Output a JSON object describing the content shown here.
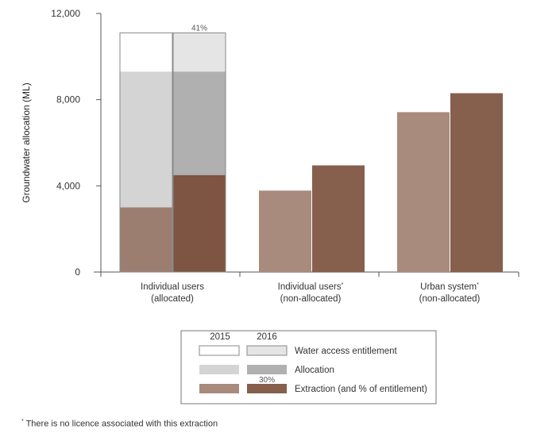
{
  "chart_data": {
    "type": "bar",
    "ylabel": "Groundwater allocation (ML)",
    "ylim": [
      0,
      12000
    ],
    "yticks": [
      "0",
      "4,000",
      "8,000",
      "12,000"
    ],
    "ytick_values": [
      0,
      4000,
      8000,
      12000
    ],
    "grid": false,
    "categories": [
      {
        "line1": "Individual users",
        "line2": "(allocated)",
        "star": ""
      },
      {
        "line1": "Individual users",
        "line2": "(non-allocated)",
        "star": "*"
      },
      {
        "line1": "Urban system",
        "line2": "(non-allocated)",
        "star": "*"
      }
    ],
    "groups": [
      {
        "category": "Individual users (allocated)",
        "bars": [
          {
            "year": "2015",
            "water_access_entitlement": 11100,
            "allocation": 9300,
            "extraction": 3000,
            "label": ""
          },
          {
            "year": "2016",
            "water_access_entitlement": 11100,
            "allocation": 9300,
            "extraction": 4500,
            "label": "41%"
          }
        ]
      },
      {
        "category": "Individual users (non-allocated)",
        "bars": [
          {
            "year": "2015",
            "extraction": 3780,
            "label": ""
          },
          {
            "year": "2016",
            "extraction": 4950,
            "label": ""
          }
        ]
      },
      {
        "category": "Urban system (non-allocated)",
        "bars": [
          {
            "year": "2015",
            "extraction": 7420,
            "label": ""
          },
          {
            "year": "2016",
            "extraction": 8300,
            "label": ""
          }
        ]
      }
    ],
    "legend": {
      "years": [
        "2015",
        "2016"
      ],
      "entries": [
        {
          "key": "water_access_entitlement",
          "label": "Water access entitlement",
          "c2015": "#ffffff",
          "c2016": "#e5e5e5",
          "example": ""
        },
        {
          "key": "allocation",
          "label": "Allocation",
          "c2015": "#d4d4d4",
          "c2016": "#b0b0b0",
          "example": ""
        },
        {
          "key": "extraction",
          "label": "Extraction (and % of entitlement)",
          "c2015": "#a88b7d",
          "c2016": "#875f4d",
          "example": "30%"
        }
      ],
      "placement": "bottom-center"
    },
    "colors": {
      "extraction_allocated_2015": "#9c7e71",
      "extraction_allocated_2016": "#7e5443",
      "extraction_2015": "#a88b7d",
      "extraction_2016": "#875f4d",
      "entitlement_2015": "#ffffff",
      "entitlement_2016": "#e5e5e5",
      "allocation_2015": "#d4d4d4",
      "allocation_2016": "#b0b0b0"
    }
  },
  "footnote": {
    "star": "*",
    "text": " There is no licence associated with this extraction"
  }
}
